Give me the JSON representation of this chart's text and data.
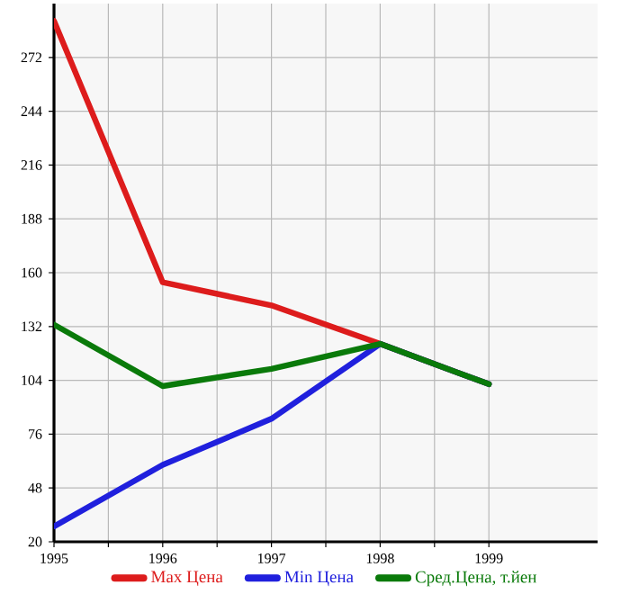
{
  "chart_data": {
    "type": "line",
    "x": [
      1995,
      1996,
      1997,
      1998,
      1999
    ],
    "series": [
      {
        "name": "Max Цена",
        "color": "#dd1c1c",
        "values": [
          291,
          155,
          143,
          123,
          102
        ]
      },
      {
        "name": "Min Цена",
        "color": "#2020dd",
        "values": [
          28,
          60,
          84,
          123,
          102
        ]
      },
      {
        "name": "Сред.Цена, т.йен",
        "color": "#0a7a0a",
        "values": [
          133,
          101,
          110,
          123,
          102
        ]
      }
    ],
    "xlim": [
      1995,
      2000
    ],
    "xticks": [
      1995,
      1996,
      1997,
      1998,
      1999
    ],
    "ylim": [
      20,
      300
    ],
    "yticks": [
      20,
      48,
      76,
      104,
      132,
      160,
      188,
      216,
      244,
      272
    ],
    "grid": true,
    "legend": "bottom",
    "marker": "none",
    "line_style": "solid"
  }
}
